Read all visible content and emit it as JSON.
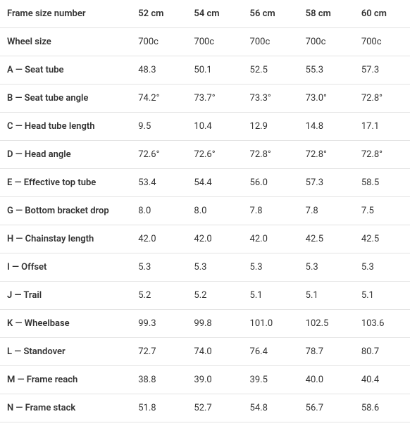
{
  "table": {
    "type": "table",
    "background_color": "#ffffff",
    "text_color": "#333333",
    "border_color": "#e3e3e3",
    "font_size_pt": 10,
    "header_font_weight": 600,
    "cell_font_weight": 400,
    "row_header_label": "Frame size number",
    "columns": [
      "52 cm",
      "54 cm",
      "56 cm",
      "58 cm",
      "60 cm"
    ],
    "rows": [
      {
        "label": "Wheel size",
        "values": [
          "700c",
          "700c",
          "700c",
          "700c",
          "700c"
        ]
      },
      {
        "label": "A — Seat tube",
        "values": [
          "48.3",
          "50.1",
          "52.5",
          "55.3",
          "57.3"
        ]
      },
      {
        "label": "B — Seat tube angle",
        "values": [
          "74.2°",
          "73.7°",
          "73.3°",
          "73.0°",
          "72.8°"
        ]
      },
      {
        "label": "C — Head tube length",
        "values": [
          "9.5",
          "10.4",
          "12.9",
          "14.8",
          "17.1"
        ]
      },
      {
        "label": "D — Head angle",
        "values": [
          "72.6°",
          "72.6°",
          "72.8°",
          "72.8°",
          "72.8°"
        ]
      },
      {
        "label": "E — Effective top tube",
        "values": [
          "53.4",
          "54.4",
          "56.0",
          "57.3",
          "58.5"
        ]
      },
      {
        "label": "G — Bottom bracket drop",
        "values": [
          "8.0",
          "8.0",
          "7.8",
          "7.8",
          "7.5"
        ]
      },
      {
        "label": "H — Chainstay length",
        "values": [
          "42.0",
          "42.0",
          "42.0",
          "42.5",
          "42.5"
        ]
      },
      {
        "label": "I — Offset",
        "values": [
          "5.3",
          "5.3",
          "5.3",
          "5.3",
          "5.3"
        ]
      },
      {
        "label": "J — Trail",
        "values": [
          "5.2",
          "5.2",
          "5.1",
          "5.1",
          "5.1"
        ]
      },
      {
        "label": "K — Wheelbase",
        "values": [
          "99.3",
          "99.8",
          "101.0",
          "102.5",
          "103.6"
        ]
      },
      {
        "label": "L — Standover",
        "values": [
          "72.7",
          "74.0",
          "76.4",
          "78.7",
          "80.7"
        ]
      },
      {
        "label": "M — Frame reach",
        "values": [
          "38.8",
          "39.0",
          "39.5",
          "40.0",
          "40.4"
        ]
      },
      {
        "label": "N — Frame stack",
        "values": [
          "51.8",
          "52.7",
          "54.8",
          "56.7",
          "58.6"
        ]
      }
    ]
  }
}
